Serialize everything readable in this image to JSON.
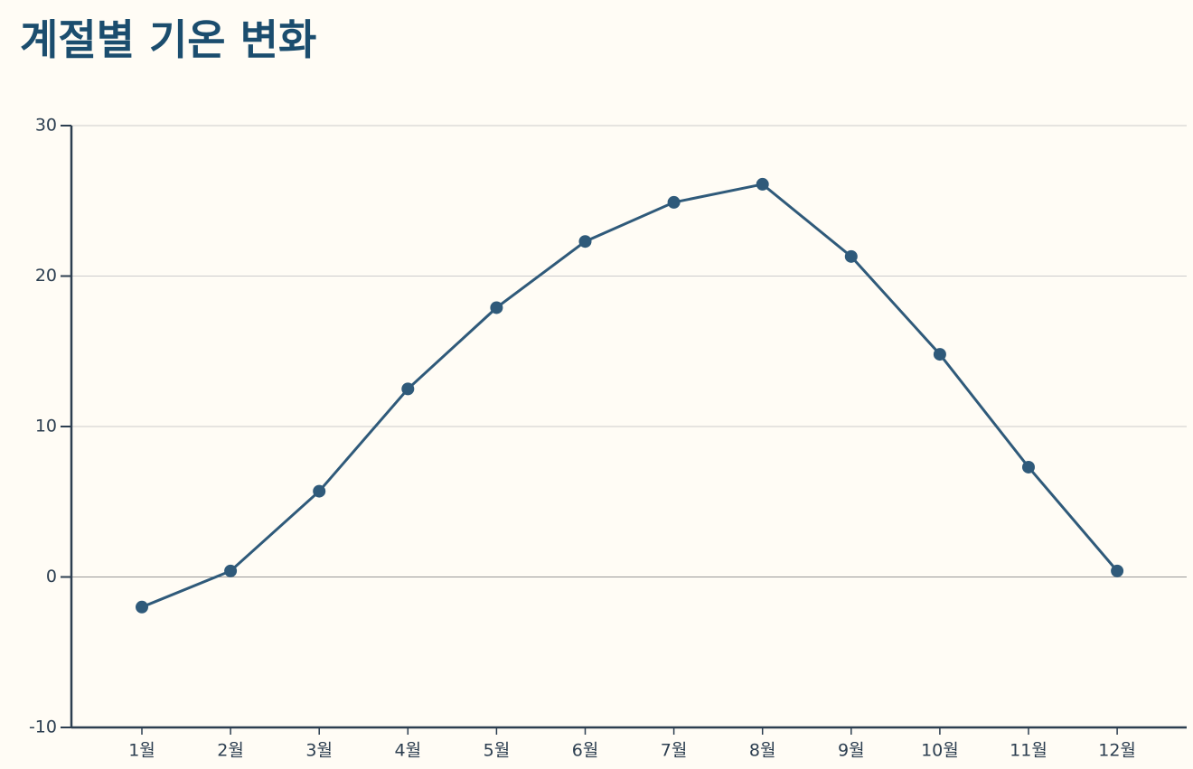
{
  "chart_data": {
    "type": "line",
    "title": "계절별 기온 변화",
    "categories": [
      "1월",
      "2월",
      "3월",
      "4월",
      "5월",
      "6월",
      "7월",
      "8월",
      "9월",
      "10월",
      "11월",
      "12월"
    ],
    "series": [
      {
        "color": "#2f5a7a",
        "values": [
          -2.0,
          0.4,
          5.7,
          12.5,
          17.9,
          22.3,
          24.9,
          26.1,
          21.3,
          14.8,
          7.3,
          0.4
        ]
      }
    ],
    "ylim": [
      -10,
      30
    ],
    "yticks": [
      -10,
      0,
      10,
      20,
      30
    ],
    "grid": true
  }
}
